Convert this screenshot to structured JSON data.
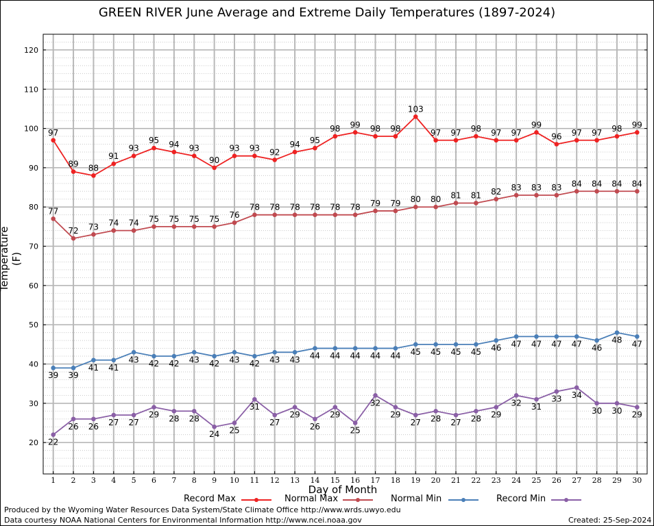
{
  "chart_data": {
    "type": "line",
    "title": "GREEN RIVER June Average and Extreme Daily Temperatures (1897-2024)",
    "xlabel": "Day of Month",
    "ylabel": "Temperature (F)",
    "x": [
      1,
      2,
      3,
      4,
      5,
      6,
      7,
      8,
      9,
      10,
      11,
      12,
      13,
      14,
      15,
      16,
      17,
      18,
      19,
      20,
      21,
      22,
      23,
      24,
      25,
      26,
      27,
      28,
      29,
      30
    ],
    "xlim": [
      0.5,
      30.5
    ],
    "ylim": [
      12,
      124
    ],
    "yticks": [
      20,
      30,
      40,
      50,
      60,
      70,
      80,
      90,
      100,
      110,
      120
    ],
    "grid": true,
    "legend_position": "bottom",
    "series": [
      {
        "name": "Record Max",
        "color": "#ee2222",
        "label_position": "above",
        "values": [
          97,
          89,
          88,
          91,
          93,
          95,
          94,
          93,
          90,
          93,
          93,
          92,
          94,
          95,
          98,
          99,
          98,
          98,
          103,
          97,
          97,
          98,
          97,
          97,
          99,
          96,
          97,
          97,
          98,
          99
        ]
      },
      {
        "name": "Normal Max",
        "color": "#c04a50",
        "label_position": "above",
        "values": [
          77,
          72,
          73,
          74,
          74,
          75,
          75,
          75,
          75,
          76,
          78,
          78,
          78,
          78,
          78,
          78,
          79,
          79,
          80,
          80,
          81,
          81,
          82,
          83,
          83,
          83,
          84,
          84,
          84,
          84
        ]
      },
      {
        "name": "Normal Min",
        "color": "#4a7fb8",
        "label_position": "below",
        "values": [
          39,
          39,
          41,
          41,
          43,
          42,
          42,
          43,
          42,
          43,
          42,
          43,
          43,
          44,
          44,
          44,
          44,
          44,
          45,
          45,
          45,
          45,
          46,
          47,
          47,
          47,
          47,
          46,
          48,
          47
        ]
      },
      {
        "name": "Record Min",
        "color": "#8a5fa6",
        "label_position": "below",
        "values": [
          22,
          26,
          26,
          27,
          27,
          29,
          28,
          28,
          24,
          25,
          31,
          27,
          29,
          26,
          29,
          25,
          32,
          29,
          27,
          28,
          27,
          28,
          29,
          32,
          31,
          33,
          34,
          30,
          30,
          29
        ]
      }
    ]
  },
  "footer": {
    "produced_by": "Produced by the Wyoming Water Resources Data System/State Climate Office http://www.wrds.uwyo.edu",
    "courtesy": "Data courtesy NOAA National Centers for Environmental Information http://www.ncei.noaa.gov",
    "created": "Created:  25-Sep-2024"
  }
}
